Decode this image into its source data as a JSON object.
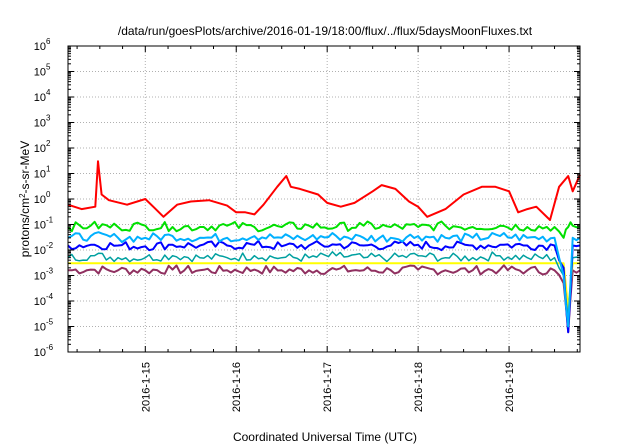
{
  "chart_data": {
    "type": "line",
    "title": "/data/run/goesPlots/archive/2016-01-19/18:00/flux/../flux/5daysMoonFluxes.txt",
    "xlabel": "Coordinated Universal Time (UTC)",
    "ylabel": {
      "base": "protons/cm",
      "sup": "2",
      "rest": "-s-sr-MeV"
    },
    "y_scale": "log",
    "ylim": [
      1e-06,
      1000000.0
    ],
    "xlim": [
      14.15,
      19.78
    ],
    "grid": true,
    "legend": "none",
    "x_ticks": [
      {
        "value": 15,
        "label": "2016-1-15"
      },
      {
        "value": 16,
        "label": "2016-1-16"
      },
      {
        "value": 17,
        "label": "2016-1-17"
      },
      {
        "value": 18,
        "label": "2016-1-18"
      },
      {
        "value": 19,
        "label": "2016-1-19"
      }
    ],
    "y_ticks": [
      {
        "exp": -6,
        "base": "10",
        "sup": "-6"
      },
      {
        "exp": -5,
        "base": "10",
        "sup": "-5"
      },
      {
        "exp": -4,
        "base": "10",
        "sup": "-4"
      },
      {
        "exp": -3,
        "base": "10",
        "sup": "-3"
      },
      {
        "exp": -2,
        "base": "10",
        "sup": "-2"
      },
      {
        "exp": -1,
        "base": "10",
        "sup": "-1"
      },
      {
        "exp": 0,
        "base": "10",
        "sup": "0"
      },
      {
        "exp": 1,
        "base": "10",
        "sup": "1"
      },
      {
        "exp": 2,
        "base": "10",
        "sup": "2"
      },
      {
        "exp": 3,
        "base": "10",
        "sup": "3"
      },
      {
        "exp": 4,
        "base": "10",
        "sup": "4"
      },
      {
        "exp": 5,
        "base": "10",
        "sup": "5"
      },
      {
        "exp": 6,
        "base": "10",
        "sup": "6"
      }
    ],
    "series": [
      {
        "color": "#ff0000",
        "width": 2,
        "x": [
          14.15,
          14.3,
          14.45,
          14.48,
          14.52,
          14.6,
          14.8,
          15.0,
          15.1,
          15.2,
          15.35,
          15.5,
          15.7,
          15.9,
          16.0,
          16.1,
          16.2,
          16.3,
          16.45,
          16.55,
          16.6,
          16.7,
          16.9,
          17.0,
          17.15,
          17.3,
          17.5,
          17.6,
          17.75,
          17.9,
          18.0,
          18.1,
          18.3,
          18.5,
          18.7,
          18.85,
          19.0,
          19.1,
          19.2,
          19.3,
          19.45,
          19.55,
          19.65,
          19.7,
          19.78
        ],
        "y": [
          0.6,
          0.4,
          0.5,
          30,
          1.5,
          0.9,
          0.6,
          1.0,
          0.45,
          0.2,
          0.6,
          0.8,
          0.9,
          0.55,
          0.3,
          0.3,
          0.25,
          0.6,
          3.0,
          8.0,
          3.0,
          2.5,
          1.5,
          0.7,
          0.5,
          0.7,
          2.0,
          3.5,
          2.5,
          0.8,
          0.5,
          0.2,
          0.4,
          1.5,
          3.0,
          3.0,
          2.0,
          0.3,
          0.4,
          0.5,
          0.15,
          3.0,
          8.0,
          2.0,
          9.0
        ]
      },
      {
        "color": "#00e000",
        "width": 2,
        "jagged": true,
        "x": [
          14.15,
          14.4,
          14.7,
          15.0,
          15.3,
          15.6,
          15.9,
          16.2,
          16.5,
          16.8,
          17.1,
          17.4,
          17.7,
          18.0,
          18.3,
          18.6,
          18.9,
          19.2,
          19.5,
          19.6,
          19.65,
          19.7,
          19.78
        ],
        "y": [
          0.08,
          0.09,
          0.08,
          0.09,
          0.08,
          0.08,
          0.09,
          0.08,
          0.08,
          0.09,
          0.08,
          0.09,
          0.08,
          0.08,
          0.09,
          0.08,
          0.09,
          0.08,
          0.08,
          0.03,
          0.08,
          0.09,
          0.08
        ]
      },
      {
        "color": "#00b0ff",
        "width": 2,
        "jagged": true,
        "x": [
          14.15,
          14.4,
          14.7,
          15.0,
          15.3,
          15.6,
          15.9,
          16.2,
          16.5,
          16.8,
          17.1,
          17.4,
          17.7,
          18.0,
          18.3,
          18.6,
          18.9,
          19.2,
          19.5,
          19.6,
          19.65,
          19.7,
          19.78
        ],
        "y": [
          0.03,
          0.035,
          0.03,
          0.03,
          0.035,
          0.03,
          0.03,
          0.035,
          0.03,
          0.03,
          0.035,
          0.03,
          0.03,
          0.035,
          0.03,
          0.03,
          0.035,
          0.03,
          0.03,
          0.001,
          1e-05,
          0.03,
          0.03
        ]
      },
      {
        "color": "#0000ff",
        "width": 2,
        "jagged": true,
        "x": [
          14.15,
          14.4,
          14.7,
          15.0,
          15.3,
          15.6,
          15.9,
          16.2,
          16.5,
          16.8,
          17.1,
          17.4,
          17.7,
          18.0,
          18.3,
          18.6,
          18.9,
          19.2,
          19.5,
          19.6,
          19.65,
          19.7,
          19.78
        ],
        "y": [
          0.015,
          0.016,
          0.015,
          0.014,
          0.016,
          0.015,
          0.015,
          0.016,
          0.014,
          0.015,
          0.016,
          0.015,
          0.015,
          0.016,
          0.014,
          0.015,
          0.016,
          0.015,
          0.015,
          0.002,
          6e-06,
          0.015,
          0.015
        ]
      },
      {
        "color": "#00a0a0",
        "width": 1.5,
        "jagged": true,
        "x": [
          14.15,
          14.4,
          14.7,
          15.0,
          15.3,
          15.6,
          15.9,
          16.2,
          16.5,
          16.8,
          17.1,
          17.4,
          17.7,
          18.0,
          18.3,
          18.6,
          18.9,
          19.2,
          19.5,
          19.6,
          19.65,
          19.7,
          19.78
        ],
        "y": [
          0.005,
          0.006,
          0.005,
          0.005,
          0.006,
          0.005,
          0.005,
          0.006,
          0.005,
          0.005,
          0.006,
          0.005,
          0.005,
          0.006,
          0.005,
          0.005,
          0.006,
          0.005,
          0.005,
          0.001,
          2e-05,
          0.005,
          0.005
        ]
      },
      {
        "color": "#ffff00",
        "width": 2,
        "x": [
          14.15,
          14.5,
          15.0,
          15.5,
          16.0,
          16.5,
          17.0,
          17.5,
          18.0,
          18.5,
          19.0,
          19.5,
          19.6,
          19.65,
          19.7,
          19.78
        ],
        "y": [
          0.003,
          0.003,
          0.003,
          0.003,
          0.003,
          0.003,
          0.003,
          0.003,
          0.003,
          0.003,
          0.003,
          0.003,
          0.003,
          5e-05,
          0.003,
          0.003
        ]
      },
      {
        "color": "#903060",
        "width": 2,
        "jagged": true,
        "x": [
          14.15,
          14.4,
          14.7,
          15.0,
          15.3,
          15.6,
          15.9,
          16.2,
          16.5,
          16.8,
          17.1,
          17.4,
          17.7,
          18.0,
          18.3,
          18.6,
          18.9,
          19.2,
          19.5,
          19.6,
          19.65,
          19.7,
          19.78
        ],
        "y": [
          0.0016,
          0.0017,
          0.0016,
          0.0016,
          0.0017,
          0.0016,
          0.0016,
          0.0017,
          0.0016,
          0.0016,
          0.0017,
          0.0016,
          0.0016,
          0.0017,
          0.0016,
          0.0016,
          0.0017,
          0.0016,
          0.0016,
          0.0005,
          6e-06,
          0.0016,
          0.0016
        ]
      }
    ]
  }
}
